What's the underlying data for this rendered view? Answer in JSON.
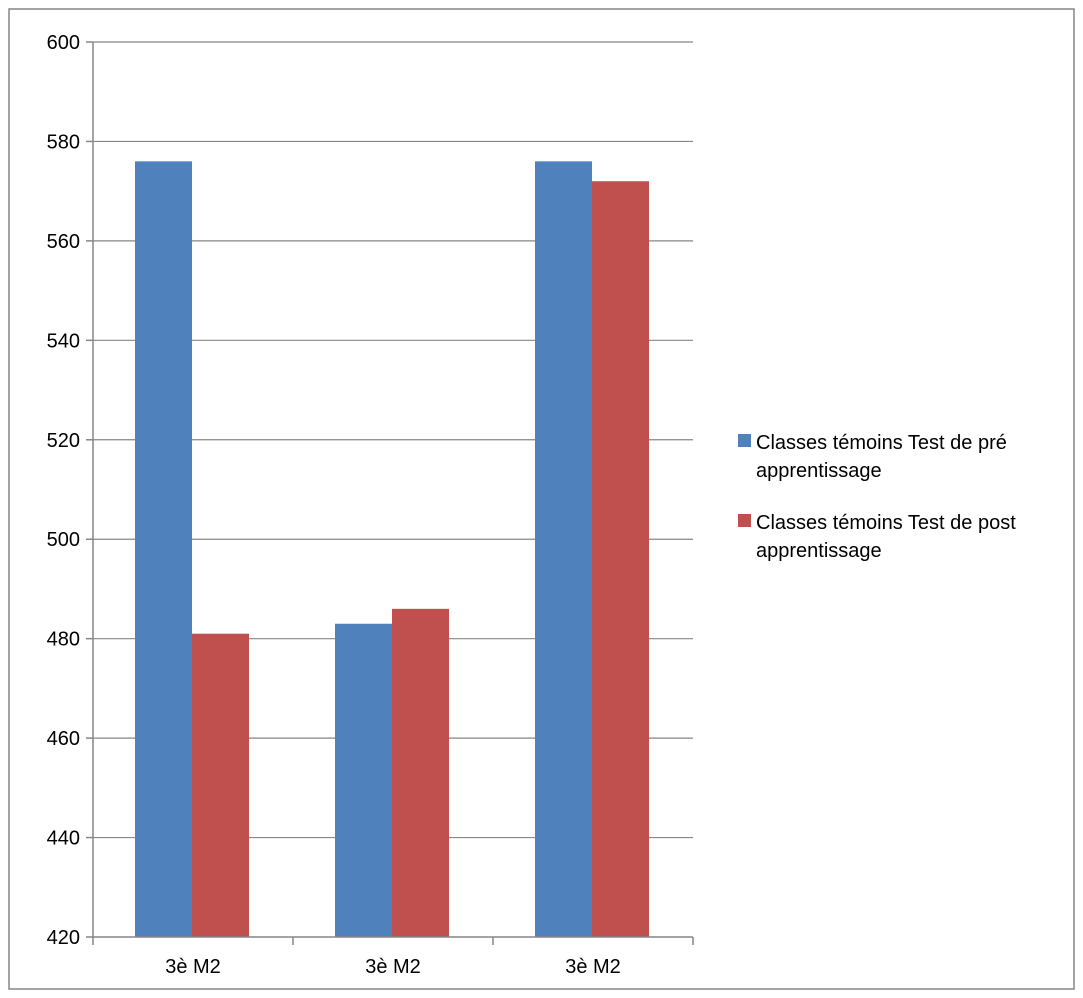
{
  "chart_data": {
    "type": "bar",
    "categories": [
      "3è M2",
      "3è M2",
      "3è M2"
    ],
    "series": [
      {
        "name": "Classes témoins Test de pré apprentissage",
        "name_lines": [
          "Classes témoins Test de pré",
          "apprentissage"
        ],
        "color": "#4F81BD",
        "values": [
          576,
          483,
          576
        ]
      },
      {
        "name": "Classes témoins Test de post apprentissage",
        "name_lines": [
          "Classes témoins Test de post",
          "apprentissage"
        ],
        "color": "#C0504D",
        "values": [
          481,
          486,
          572
        ]
      }
    ],
    "ylim": [
      420,
      600
    ],
    "yticks": [
      420,
      440,
      460,
      480,
      500,
      520,
      540,
      560,
      580,
      600
    ],
    "grid": true,
    "legend_position": "right",
    "title": "",
    "xlabel": "",
    "ylabel": ""
  }
}
